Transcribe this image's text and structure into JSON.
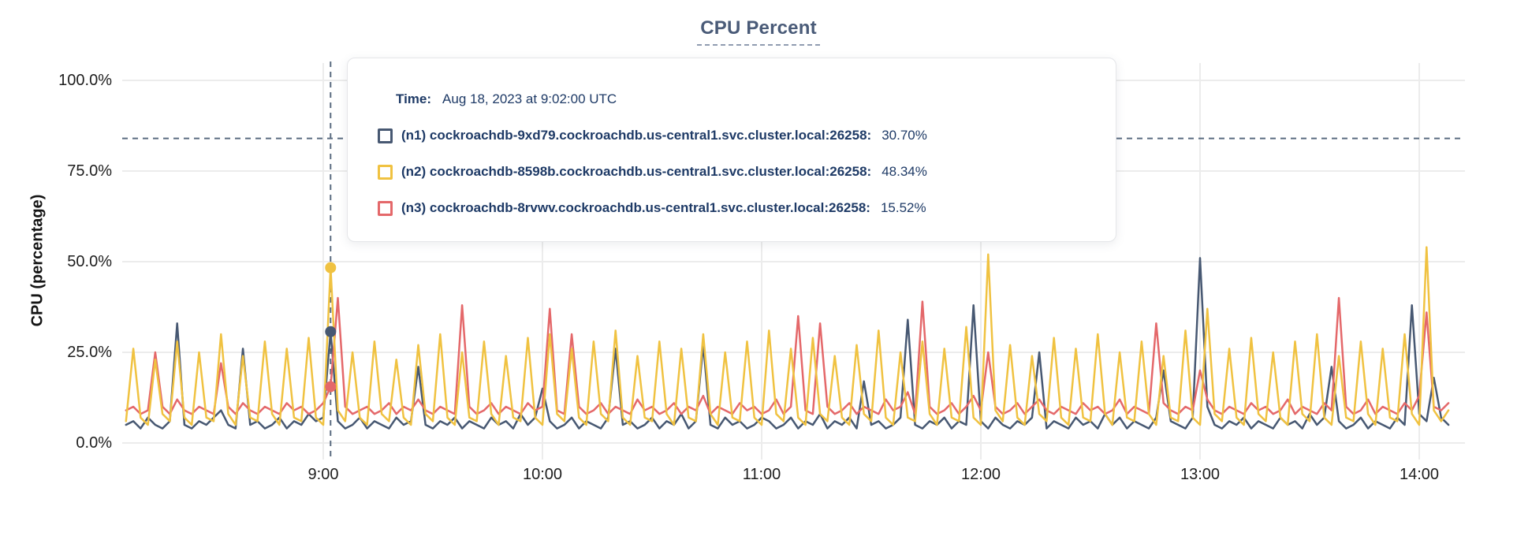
{
  "title": "CPU Percent",
  "tooltip": {
    "time_label": "Time:",
    "time_value": "Aug 18, 2023 at 9:02:00 UTC",
    "rows": [
      {
        "name": "(n1) cockroachdb-9xd79.cockroachdb.us-central1.svc.cluster.local:26258:",
        "value": "30.70%",
        "color": "#475872"
      },
      {
        "name": "(n2) cockroachdb-8598b.cockroachdb.us-central1.svc.cluster.local:26258:",
        "value": "48.34%",
        "color": "#F0C241"
      },
      {
        "name": "(n3) cockroachdb-8rvwv.cockroachdb.us-central1.svc.cluster.local:26258:",
        "value": "15.52%",
        "color": "#E4686A"
      }
    ]
  },
  "chart_data": {
    "type": "line",
    "title": "CPU Percent",
    "xlabel": "",
    "ylabel": "CPU (percentage)",
    "ylim": [
      0,
      100
    ],
    "grid": true,
    "colors": {
      "gridline": "#ECECEC",
      "crosshair": "#5A6B80",
      "axis_text": "#1d1d1d",
      "title": "#4A5B78"
    },
    "y_ticks": [
      {
        "label": "0.0%",
        "value": 0
      },
      {
        "label": "25.0%",
        "value": 25
      },
      {
        "label": "50.0%",
        "value": 50
      },
      {
        "label": "75.0%",
        "value": 75
      },
      {
        "label": "100.0%",
        "value": 100
      }
    ],
    "x_ticks": [
      {
        "label": "9:00",
        "minutes": 540
      },
      {
        "label": "10:00",
        "minutes": 600
      },
      {
        "label": "11:00",
        "minutes": 660
      },
      {
        "label": "12:00",
        "minutes": 720
      },
      {
        "label": "13:00",
        "minutes": 780
      },
      {
        "label": "14:00",
        "minutes": 840
      }
    ],
    "x_start_minutes": 486,
    "x_step_minutes": 2,
    "hover": {
      "time_label": "9:02",
      "minutes": 542,
      "hline_pct": 84,
      "values": {
        "n1": 30.7,
        "n2": 48.34,
        "n3": 15.52
      }
    },
    "series": [
      {
        "id": "n1",
        "label": "(n1) cockroachdb-9xd79.cockroachdb.us-central1.svc.cluster.local:26258",
        "color": "#475872",
        "values": [
          5,
          6,
          4,
          7,
          5,
          4,
          6,
          33,
          5,
          4,
          6,
          5,
          7,
          9,
          5,
          4,
          26,
          5,
          6,
          4,
          5,
          7,
          4,
          6,
          5,
          8,
          6,
          7,
          30.7,
          6,
          4,
          5,
          7,
          4,
          6,
          5,
          4,
          7,
          5,
          6,
          21,
          5,
          4,
          6,
          5,
          7,
          4,
          6,
          5,
          4,
          7,
          5,
          6,
          4,
          8,
          5,
          7,
          15,
          6,
          4,
          5,
          7,
          4,
          6,
          5,
          4,
          7,
          26,
          5,
          6,
          4,
          5,
          7,
          4,
          6,
          5,
          8,
          4,
          6,
          27,
          5,
          4,
          7,
          5,
          6,
          4,
          5,
          7,
          6,
          4,
          5,
          7,
          4,
          6,
          5,
          8,
          4,
          6,
          5,
          7,
          4,
          17,
          5,
          6,
          4,
          5,
          7,
          34,
          5,
          4,
          6,
          5,
          7,
          4,
          6,
          5,
          38,
          6,
          4,
          7,
          5,
          4,
          6,
          5,
          7,
          25,
          4,
          6,
          5,
          4,
          7,
          5,
          6,
          4,
          8,
          5,
          7,
          4,
          6,
          5,
          4,
          7,
          20,
          6,
          5,
          4,
          7,
          51,
          10,
          5,
          4,
          6,
          5,
          7,
          4,
          6,
          5,
          4,
          7,
          5,
          6,
          4,
          8,
          5,
          7,
          21,
          6,
          4,
          5,
          7,
          4,
          6,
          5,
          4,
          7,
          5,
          38,
          8,
          6,
          18,
          7,
          5
        ]
      },
      {
        "id": "n2",
        "label": "(n2) cockroachdb-8598b.cockroachdb.us-central1.svc.cluster.local:26258",
        "color": "#F0C241",
        "values": [
          6,
          26,
          7,
          5,
          23,
          8,
          6,
          28,
          7,
          5,
          25,
          7,
          6,
          30,
          8,
          5,
          24,
          7,
          6,
          28,
          8,
          5,
          26,
          7,
          6,
          29,
          7,
          5,
          48.34,
          9,
          6,
          25,
          7,
          5,
          28,
          8,
          6,
          23,
          7,
          5,
          27,
          8,
          6,
          30,
          7,
          5,
          25,
          7,
          6,
          28,
          8,
          5,
          24,
          7,
          6,
          29,
          7,
          5,
          30,
          8,
          6,
          26,
          7,
          5,
          28,
          8,
          6,
          31,
          7,
          5,
          24,
          7,
          6,
          28,
          8,
          5,
          26,
          7,
          6,
          30,
          8,
          5,
          25,
          7,
          6,
          28,
          7,
          5,
          31,
          8,
          6,
          26,
          7,
          5,
          29,
          8,
          6,
          24,
          7,
          5,
          27,
          8,
          6,
          31,
          7,
          5,
          25,
          7,
          6,
          28,
          8,
          5,
          26,
          7,
          6,
          32,
          7,
          5,
          52,
          9,
          6,
          27,
          7,
          5,
          24,
          8,
          6,
          29,
          7,
          5,
          26,
          7,
          6,
          30,
          8,
          5,
          25,
          7,
          6,
          28,
          8,
          5,
          24,
          7,
          6,
          31,
          7,
          5,
          37,
          8,
          6,
          26,
          7,
          5,
          29,
          8,
          6,
          25,
          7,
          5,
          28,
          8,
          6,
          30,
          7,
          5,
          24,
          7,
          6,
          28,
          8,
          5,
          26,
          7,
          6,
          30,
          8,
          5,
          54,
          9,
          6,
          9
        ]
      },
      {
        "id": "n3",
        "label": "(n3) cockroachdb-8rvwv.cockroachdb.us-central1.svc.cluster.local:26258",
        "color": "#E4686A",
        "values": [
          9,
          10,
          8,
          9,
          25,
          10,
          8,
          12,
          9,
          8,
          10,
          9,
          8,
          22,
          10,
          8,
          11,
          9,
          8,
          10,
          9,
          8,
          11,
          9,
          10,
          8,
          9,
          11,
          15.52,
          40,
          10,
          8,
          9,
          10,
          8,
          9,
          11,
          8,
          10,
          9,
          12,
          9,
          8,
          10,
          9,
          8,
          38,
          10,
          8,
          9,
          11,
          8,
          10,
          9,
          8,
          11,
          9,
          10,
          37,
          9,
          8,
          30,
          10,
          8,
          9,
          11,
          8,
          10,
          9,
          8,
          12,
          9,
          10,
          8,
          9,
          11,
          8,
          10,
          9,
          13,
          8,
          10,
          9,
          8,
          11,
          9,
          10,
          8,
          9,
          12,
          8,
          10,
          35,
          9,
          8,
          33,
          10,
          8,
          9,
          11,
          8,
          10,
          9,
          8,
          12,
          9,
          10,
          14,
          8,
          39,
          10,
          8,
          9,
          11,
          8,
          10,
          13,
          9,
          25,
          10,
          8,
          9,
          11,
          8,
          10,
          12,
          9,
          8,
          10,
          9,
          8,
          11,
          9,
          10,
          8,
          9,
          12,
          8,
          10,
          9,
          8,
          33,
          11,
          9,
          8,
          10,
          9,
          20,
          12,
          9,
          8,
          10,
          9,
          8,
          11,
          9,
          10,
          8,
          9,
          12,
          8,
          10,
          9,
          8,
          11,
          9,
          40,
          10,
          8,
          9,
          12,
          8,
          10,
          9,
          8,
          11,
          9,
          13,
          36,
          10,
          9,
          11
        ]
      }
    ]
  }
}
